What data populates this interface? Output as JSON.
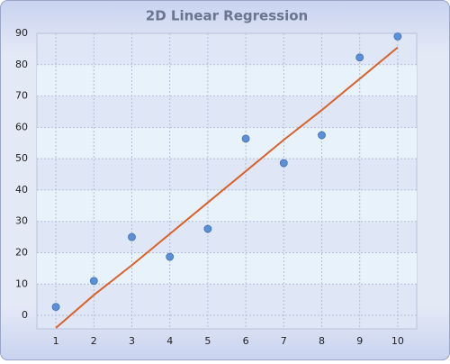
{
  "chart_data": {
    "type": "scatter",
    "title": "2D Linear Regression",
    "x": [
      1,
      2,
      3,
      4,
      5,
      6,
      7,
      8,
      9,
      10
    ],
    "series": [
      {
        "type": "scatter",
        "color": "#5b8fd6",
        "values": [
          2.7,
          11,
          25,
          18.7,
          27.6,
          56.4,
          48.6,
          57.5,
          82.3,
          89
        ]
      },
      {
        "type": "line",
        "color": "#d9622b",
        "values": [
          -4,
          6.5,
          16,
          26,
          36,
          46,
          56,
          65.5,
          75.5,
          85.5
        ]
      }
    ],
    "xlim": [
      0.5,
      10.5
    ],
    "xticks": [
      1,
      2,
      3,
      4,
      5,
      6,
      7,
      8,
      9,
      10
    ],
    "ylim": [
      -4.3,
      90
    ],
    "yticks": [
      0,
      10,
      20,
      30,
      40,
      50,
      60,
      70,
      80,
      90
    ],
    "grid": true
  }
}
